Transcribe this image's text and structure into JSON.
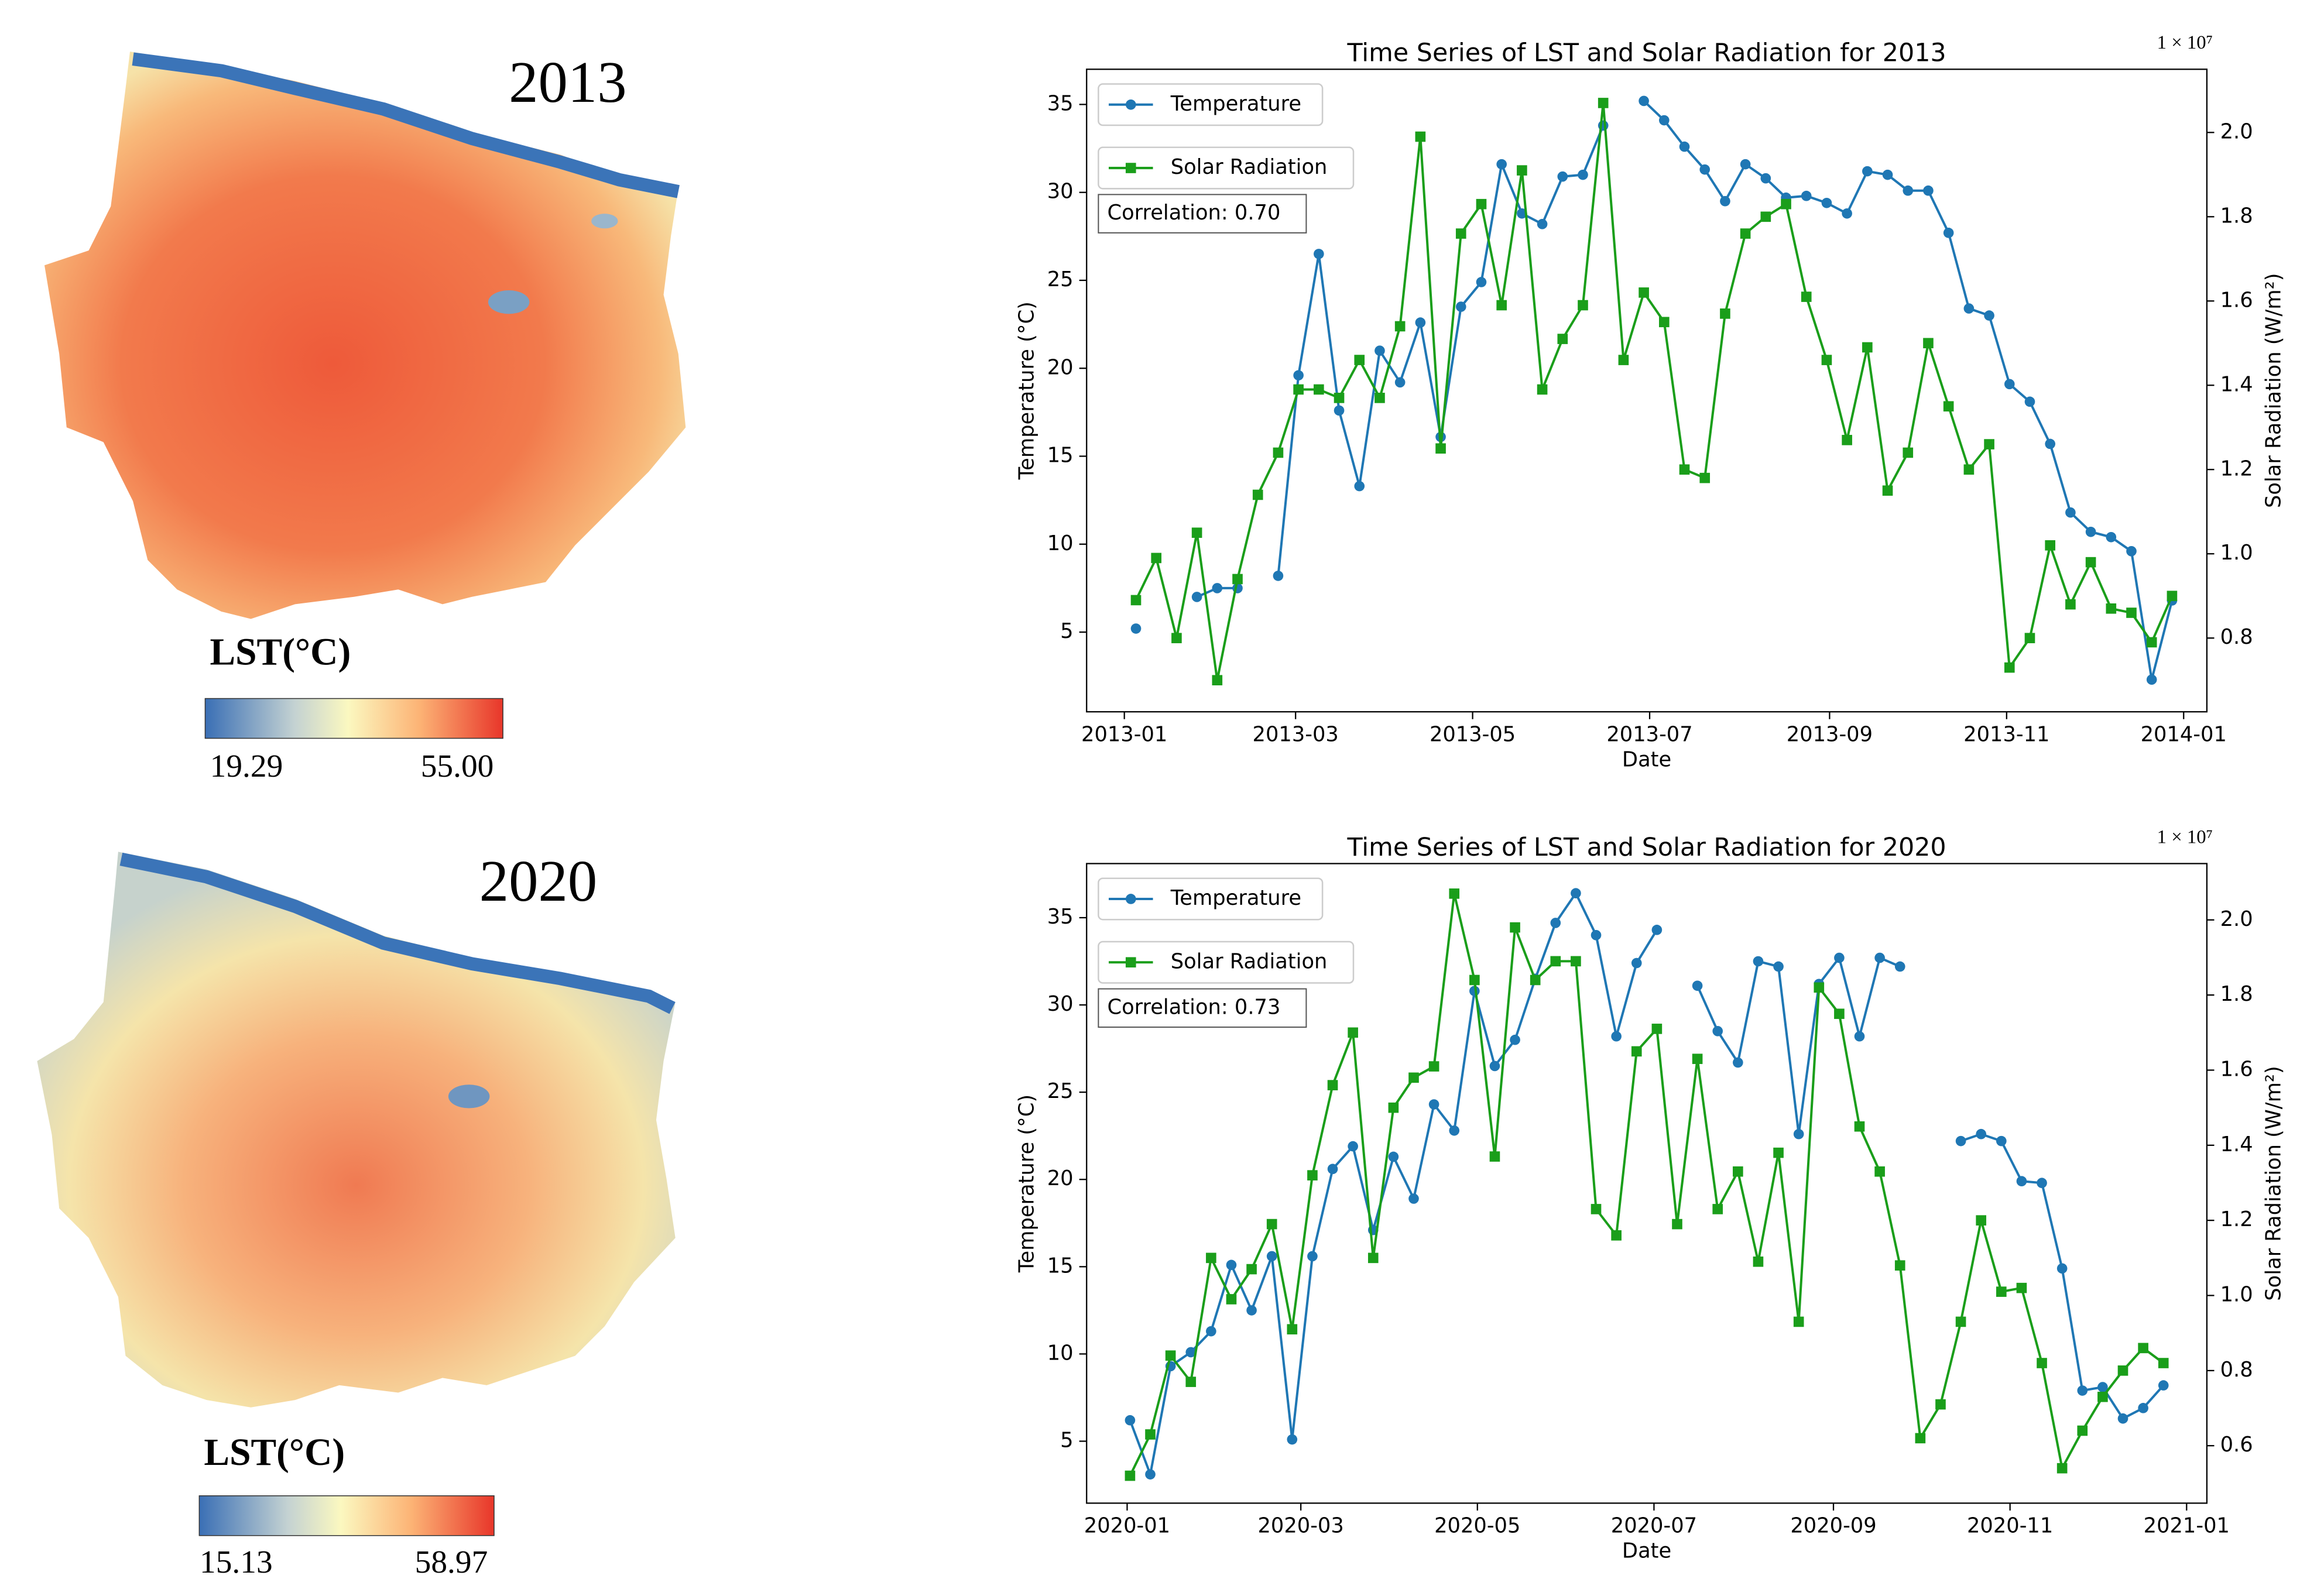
{
  "maps": [
    {
      "year": "2013",
      "legend_title": "LST(°C)",
      "min_label": "19.29",
      "max_label": "55.00"
    },
    {
      "year": "2020",
      "legend_title": "LST(°C)",
      "min_label": "15.13",
      "max_label": "58.97"
    }
  ],
  "chart_data": [
    {
      "type": "line",
      "title": "Time Series of LST and Solar Radiation for 2013",
      "x_label": "Date",
      "y_label": "Temperature (°C)",
      "y2_label": "Solar Radiation (W/m²)",
      "y2_offset_label": "1 × 10⁷",
      "annotation": "Correlation: 0.70",
      "x": [
        "2013-01-05",
        "2013-01-12",
        "2013-01-19",
        "2013-01-26",
        "2013-02-02",
        "2013-02-09",
        "2013-02-16",
        "2013-02-23",
        "2013-03-02",
        "2013-03-09",
        "2013-03-16",
        "2013-03-23",
        "2013-03-30",
        "2013-04-06",
        "2013-04-13",
        "2013-04-20",
        "2013-04-27",
        "2013-05-04",
        "2013-05-11",
        "2013-05-18",
        "2013-05-25",
        "2013-06-01",
        "2013-06-08",
        "2013-06-15",
        "2013-06-22",
        "2013-06-29",
        "2013-07-06",
        "2013-07-13",
        "2013-07-20",
        "2013-07-27",
        "2013-08-03",
        "2013-08-10",
        "2013-08-17",
        "2013-08-24",
        "2013-08-31",
        "2013-09-07",
        "2013-09-14",
        "2013-09-21",
        "2013-09-28",
        "2013-10-05",
        "2013-10-12",
        "2013-10-19",
        "2013-10-26",
        "2013-11-02",
        "2013-11-09",
        "2013-11-16",
        "2013-11-23",
        "2013-11-30",
        "2013-12-07",
        "2013-12-14",
        "2013-12-21",
        "2013-12-28"
      ],
      "xlim": [
        "2012-12-19",
        "2014-01-09"
      ],
      "xticks": [
        "2013-01",
        "2013-03",
        "2013-05",
        "2013-07",
        "2013-09",
        "2013-11",
        "2014-01"
      ],
      "ylim": [
        0.47,
        37.0
      ],
      "yticks": [
        5,
        10,
        15,
        20,
        25,
        30,
        35
      ],
      "y2lim": [
        0.625,
        2.15
      ],
      "y2ticks": [
        0.8,
        {
          "value": 1,
          "label": "1.0"
        },
        1.2,
        1.4,
        1.6,
        1.8,
        {
          "value": 2,
          "label": "2.0"
        }
      ],
      "series": [
        {
          "name": "Temperature",
          "color": "#1f77b4",
          "marker": "circle",
          "values": [
            5.2,
            null,
            null,
            7.0,
            7.5,
            7.5,
            null,
            8.2,
            19.6,
            26.5,
            17.6,
            13.3,
            21.0,
            19.2,
            22.6,
            16.1,
            23.5,
            24.9,
            31.6,
            28.8,
            28.2,
            30.9,
            31.0,
            33.8,
            null,
            35.2,
            34.1,
            32.6,
            31.3,
            29.5,
            31.6,
            30.8,
            29.7,
            29.8,
            29.4,
            28.8,
            31.2,
            31.0,
            30.1,
            30.1,
            27.7,
            23.4,
            23.0,
            19.1,
            18.1,
            15.7,
            11.8,
            10.7,
            10.4,
            9.6,
            2.3,
            6.8
          ]
        },
        {
          "name": "Solar Radiation",
          "color": "#1a9e1a",
          "marker": "square",
          "axis": "y2",
          "values": [
            0.89,
            0.99,
            0.8,
            1.05,
            0.7,
            0.94,
            1.14,
            1.24,
            1.39,
            1.39,
            1.37,
            1.46,
            1.37,
            1.54,
            1.99,
            1.25,
            1.76,
            1.83,
            1.59,
            1.91,
            1.39,
            1.51,
            1.59,
            2.07,
            1.46,
            1.62,
            1.55,
            1.2,
            1.18,
            1.57,
            1.76,
            1.8,
            1.83,
            1.61,
            1.46,
            1.27,
            1.49,
            1.15,
            1.24,
            1.5,
            1.35,
            1.2,
            1.26,
            0.73,
            0.8,
            1.02,
            0.88,
            0.98,
            0.87,
            0.86,
            0.79,
            0.9
          ]
        }
      ]
    },
    {
      "type": "line",
      "title": "Time Series of LST and Solar Radiation for 2020",
      "x_label": "Date",
      "y_label": "Temperature (°C)",
      "y2_label": "Solar Radiation (W/m²)",
      "y2_offset_label": "1 × 10⁷",
      "annotation": "Correlation: 0.73",
      "x": [
        "2020-01-02",
        "2020-01-09",
        "2020-01-16",
        "2020-01-23",
        "2020-01-30",
        "2020-02-06",
        "2020-02-13",
        "2020-02-20",
        "2020-02-27",
        "2020-03-05",
        "2020-03-12",
        "2020-03-19",
        "2020-03-26",
        "2020-04-02",
        "2020-04-09",
        "2020-04-16",
        "2020-04-23",
        "2020-04-30",
        "2020-05-07",
        "2020-05-14",
        "2020-05-21",
        "2020-05-28",
        "2020-06-04",
        "2020-06-11",
        "2020-06-18",
        "2020-06-25",
        "2020-07-02",
        "2020-07-09",
        "2020-07-16",
        "2020-07-23",
        "2020-07-30",
        "2020-08-06",
        "2020-08-13",
        "2020-08-20",
        "2020-08-27",
        "2020-09-03",
        "2020-09-10",
        "2020-09-17",
        "2020-09-24",
        "2020-10-01",
        "2020-10-08",
        "2020-10-15",
        "2020-10-22",
        "2020-10-29",
        "2020-11-05",
        "2020-11-12",
        "2020-11-19",
        "2020-11-26",
        "2020-12-03",
        "2020-12-10",
        "2020-12-17",
        "2020-12-24"
      ],
      "xlim": [
        "2019-12-18",
        "2021-01-08"
      ],
      "xticks": [
        "2020-01",
        "2020-03",
        "2020-05",
        "2020-07",
        "2020-09",
        "2020-11",
        "2021-01"
      ],
      "ylim": [
        1.45,
        38.1
      ],
      "yticks": [
        5,
        10,
        15,
        20,
        25,
        30,
        35
      ],
      "y2lim": [
        0.447,
        2.15
      ],
      "y2ticks": [
        0.6,
        0.8,
        {
          "value": 1,
          "label": "1.0"
        },
        1.2,
        1.4,
        1.6,
        1.8,
        {
          "value": 2,
          "label": "2.0"
        }
      ],
      "series": [
        {
          "name": "Temperature",
          "color": "#1f77b4",
          "marker": "circle",
          "values": [
            6.2,
            3.1,
            9.3,
            10.1,
            11.3,
            15.1,
            12.5,
            15.6,
            5.1,
            15.6,
            20.6,
            21.9,
            17.1,
            21.3,
            18.9,
            24.3,
            22.8,
            30.8,
            26.5,
            28.0,
            31.5,
            34.7,
            36.4,
            34.0,
            28.2,
            32.4,
            34.3,
            null,
            31.1,
            28.5,
            26.7,
            32.5,
            32.2,
            22.6,
            31.2,
            32.7,
            28.2,
            32.7,
            32.2,
            null,
            null,
            22.2,
            22.6,
            22.2,
            19.9,
            19.8,
            14.9,
            7.9,
            8.1,
            6.3,
            6.9,
            8.2
          ]
        },
        {
          "name": "Solar Radiation",
          "color": "#1a9e1a",
          "marker": "square",
          "axis": "y2",
          "values": [
            0.52,
            0.63,
            0.84,
            0.77,
            1.1,
            0.99,
            1.07,
            1.19,
            0.91,
            1.32,
            1.56,
            1.7,
            1.1,
            1.5,
            1.58,
            1.61,
            2.07,
            1.84,
            1.37,
            1.98,
            1.84,
            1.89,
            1.89,
            1.23,
            1.16,
            1.65,
            1.71,
            1.19,
            1.63,
            1.23,
            1.33,
            1.09,
            1.38,
            0.93,
            1.82,
            1.75,
            1.45,
            1.33,
            1.08,
            0.62,
            0.71,
            0.93,
            1.2,
            1.01,
            1.02,
            0.82,
            0.54,
            0.64,
            0.73,
            0.8,
            0.86,
            0.82
          ]
        }
      ]
    }
  ]
}
